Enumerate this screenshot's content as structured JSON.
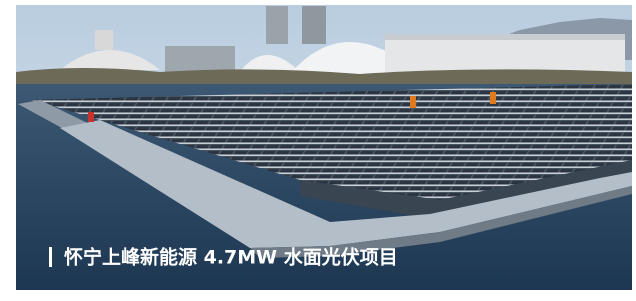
{
  "image": {
    "caption": "怀宁上峰新能源 4.7MW 水面光伏项目"
  }
}
